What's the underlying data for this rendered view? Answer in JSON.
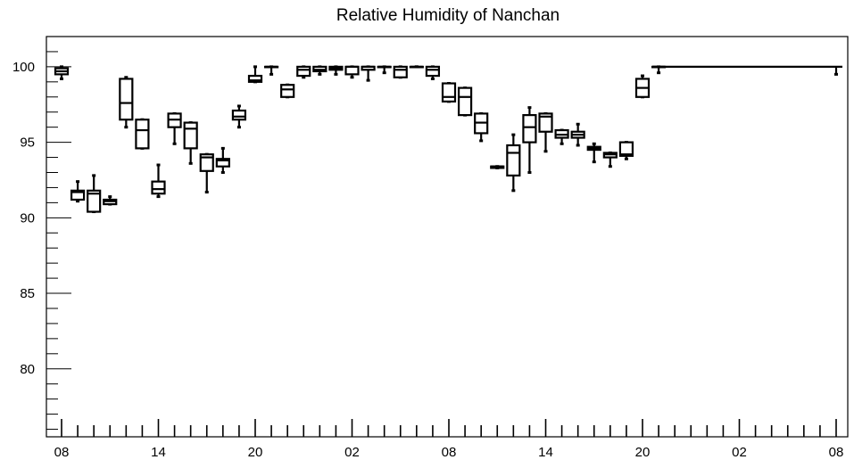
{
  "chart_data": {
    "type": "box",
    "title": "Relative Humidity of Nanchan",
    "xlabel": "",
    "ylabel": "",
    "ylim": [
      75.5,
      102
    ],
    "x_major_hours": [
      0,
      6,
      12,
      18,
      24,
      30,
      36,
      42,
      48
    ],
    "x_tick_labels": [
      "08",
      "14",
      "20",
      "02",
      "08",
      "14",
      "20",
      "02",
      "08"
    ],
    "y_ticks": [
      80,
      85,
      90,
      95,
      100
    ],
    "y_tick_labels": [
      "80",
      "85",
      "90",
      "95",
      "100"
    ],
    "grid": false,
    "boxes": [
      {
        "x": 0,
        "min": 99.2,
        "q1": 99.5,
        "median": 99.7,
        "q3": 99.9,
        "max": 100.0
      },
      {
        "x": 1,
        "min": 91.1,
        "q1": 91.2,
        "median": 91.7,
        "q3": 91.8,
        "max": 92.4
      },
      {
        "x": 2,
        "min": 90.4,
        "q1": 90.4,
        "median": 91.6,
        "q3": 91.8,
        "max": 92.8
      },
      {
        "x": 3,
        "min": 90.9,
        "q1": 90.9,
        "median": 91.1,
        "q3": 91.2,
        "max": 91.4
      },
      {
        "x": 4,
        "min": 96.0,
        "q1": 96.5,
        "median": 97.6,
        "q3": 99.2,
        "max": 99.3
      },
      {
        "x": 5,
        "min": 94.6,
        "q1": 94.6,
        "median": 95.8,
        "q3": 96.5,
        "max": 96.5
      },
      {
        "x": 6,
        "min": 91.4,
        "q1": 91.6,
        "median": 91.9,
        "q3": 92.4,
        "max": 93.5
      },
      {
        "x": 7,
        "min": 94.9,
        "q1": 96.0,
        "median": 96.5,
        "q3": 96.9,
        "max": 96.9
      },
      {
        "x": 8,
        "min": 93.6,
        "q1": 94.6,
        "median": 95.9,
        "q3": 96.3,
        "max": 96.3
      },
      {
        "x": 9,
        "min": 91.7,
        "q1": 93.1,
        "median": 94.0,
        "q3": 94.2,
        "max": 94.2
      },
      {
        "x": 10,
        "min": 93.0,
        "q1": 93.4,
        "median": 93.8,
        "q3": 93.9,
        "max": 94.6
      },
      {
        "x": 11,
        "min": 96.0,
        "q1": 96.5,
        "median": 96.7,
        "q3": 97.1,
        "max": 97.4
      },
      {
        "x": 12,
        "min": 99.0,
        "q1": 99.0,
        "median": 99.1,
        "q3": 99.4,
        "max": 100.0
      },
      {
        "x": 13,
        "min": 99.5,
        "q1": 100.0,
        "median": 100.0,
        "q3": 100.0,
        "max": 100.0
      },
      {
        "x": 14,
        "min": 98.0,
        "q1": 98.0,
        "median": 98.5,
        "q3": 98.8,
        "max": 98.8
      },
      {
        "x": 15,
        "min": 99.3,
        "q1": 99.4,
        "median": 99.8,
        "q3": 100.0,
        "max": 100.0
      },
      {
        "x": 16,
        "min": 99.5,
        "q1": 99.7,
        "median": 99.8,
        "q3": 100.0,
        "max": 100.0
      },
      {
        "x": 17,
        "min": 99.5,
        "q1": 99.8,
        "median": 99.9,
        "q3": 100.0,
        "max": 100.0
      },
      {
        "x": 18,
        "min": 99.3,
        "q1": 99.5,
        "median": 100.0,
        "q3": 100.0,
        "max": 100.0
      },
      {
        "x": 19,
        "min": 99.1,
        "q1": 99.8,
        "median": 100.0,
        "q3": 100.0,
        "max": 100.0
      },
      {
        "x": 20,
        "min": 99.6,
        "q1": 100.0,
        "median": 100.0,
        "q3": 100.0,
        "max": 100.0
      },
      {
        "x": 21,
        "min": 99.3,
        "q1": 99.3,
        "median": 99.8,
        "q3": 100.0,
        "max": 100.0
      },
      {
        "x": 22,
        "min": 100.0,
        "q1": 100.0,
        "median": 100.0,
        "q3": 100.0,
        "max": 100.0
      },
      {
        "x": 23,
        "min": 99.2,
        "q1": 99.4,
        "median": 99.8,
        "q3": 100.0,
        "max": 100.0
      },
      {
        "x": 24,
        "min": 97.7,
        "q1": 97.7,
        "median": 98.0,
        "q3": 98.9,
        "max": 98.9
      },
      {
        "x": 25,
        "min": 96.8,
        "q1": 96.8,
        "median": 98.0,
        "q3": 98.6,
        "max": 98.6
      },
      {
        "x": 26,
        "min": 95.1,
        "q1": 95.6,
        "median": 96.3,
        "q3": 96.9,
        "max": 96.9
      },
      {
        "x": 27,
        "min": 93.3,
        "q1": 93.3,
        "median": 93.4,
        "q3": 93.4,
        "max": 93.4
      },
      {
        "x": 28,
        "min": 91.8,
        "q1": 92.8,
        "median": 94.3,
        "q3": 94.8,
        "max": 95.5
      },
      {
        "x": 29,
        "min": 93.0,
        "q1": 95.0,
        "median": 96.0,
        "q3": 96.8,
        "max": 97.3
      },
      {
        "x": 30,
        "min": 94.4,
        "q1": 95.7,
        "median": 96.7,
        "q3": 96.9,
        "max": 96.9
      },
      {
        "x": 31,
        "min": 94.9,
        "q1": 95.3,
        "median": 95.5,
        "q3": 95.8,
        "max": 95.8
      },
      {
        "x": 32,
        "min": 94.8,
        "q1": 95.3,
        "median": 95.5,
        "q3": 95.7,
        "max": 96.2
      },
      {
        "x": 33,
        "min": 93.7,
        "q1": 94.5,
        "median": 94.6,
        "q3": 94.7,
        "max": 94.9
      },
      {
        "x": 34,
        "min": 93.4,
        "q1": 94.0,
        "median": 94.2,
        "q3": 94.3,
        "max": 94.3
      },
      {
        "x": 35,
        "min": 93.9,
        "q1": 94.1,
        "median": 94.2,
        "q3": 95.0,
        "max": 95.0
      },
      {
        "x": 36,
        "min": 98.0,
        "q1": 98.0,
        "median": 98.6,
        "q3": 99.2,
        "max": 99.4
      },
      {
        "x": 37,
        "min": 99.6,
        "q1": 100.0,
        "median": 100.0,
        "q3": 100.0,
        "max": 100.0
      }
    ],
    "flat_line": {
      "from": 37,
      "to": 48,
      "value": 100.0
    },
    "extra_points": [
      {
        "x": 48,
        "min": 99.5,
        "max": 100.0
      }
    ]
  }
}
